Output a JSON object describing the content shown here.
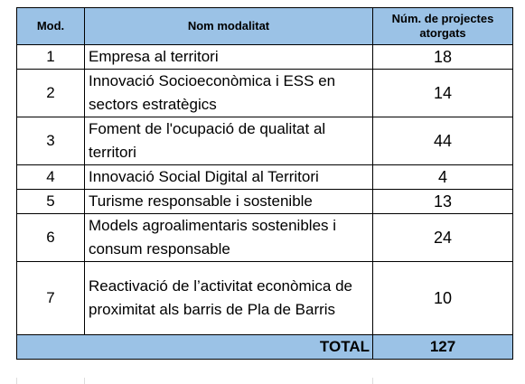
{
  "table": {
    "header": [
      "Mod.",
      "Nom modalitat",
      "Núm. de projectes atorgats"
    ],
    "rows": [
      [
        "1",
        "Empresa al territori",
        "18"
      ],
      [
        "2",
        "Innovació Socioeconòmica i ESS en sectors estratègics",
        "14"
      ],
      [
        "3",
        "Foment de l'ocupació de qualitat al territori",
        "44"
      ],
      [
        "4",
        "Innovació Social Digital al Territori",
        "4"
      ],
      [
        "5",
        "Turisme responsable i sostenible",
        "13"
      ],
      [
        "6",
        "Models agroalimentaris sostenibles i consum responsable",
        "24"
      ],
      [
        "7",
        "Reactivació de l’activitat econòmica de proximitat als barris de Pla de Barris",
        "10"
      ]
    ],
    "total": {
      "label": "TOTAL",
      "value": "127"
    }
  }
}
